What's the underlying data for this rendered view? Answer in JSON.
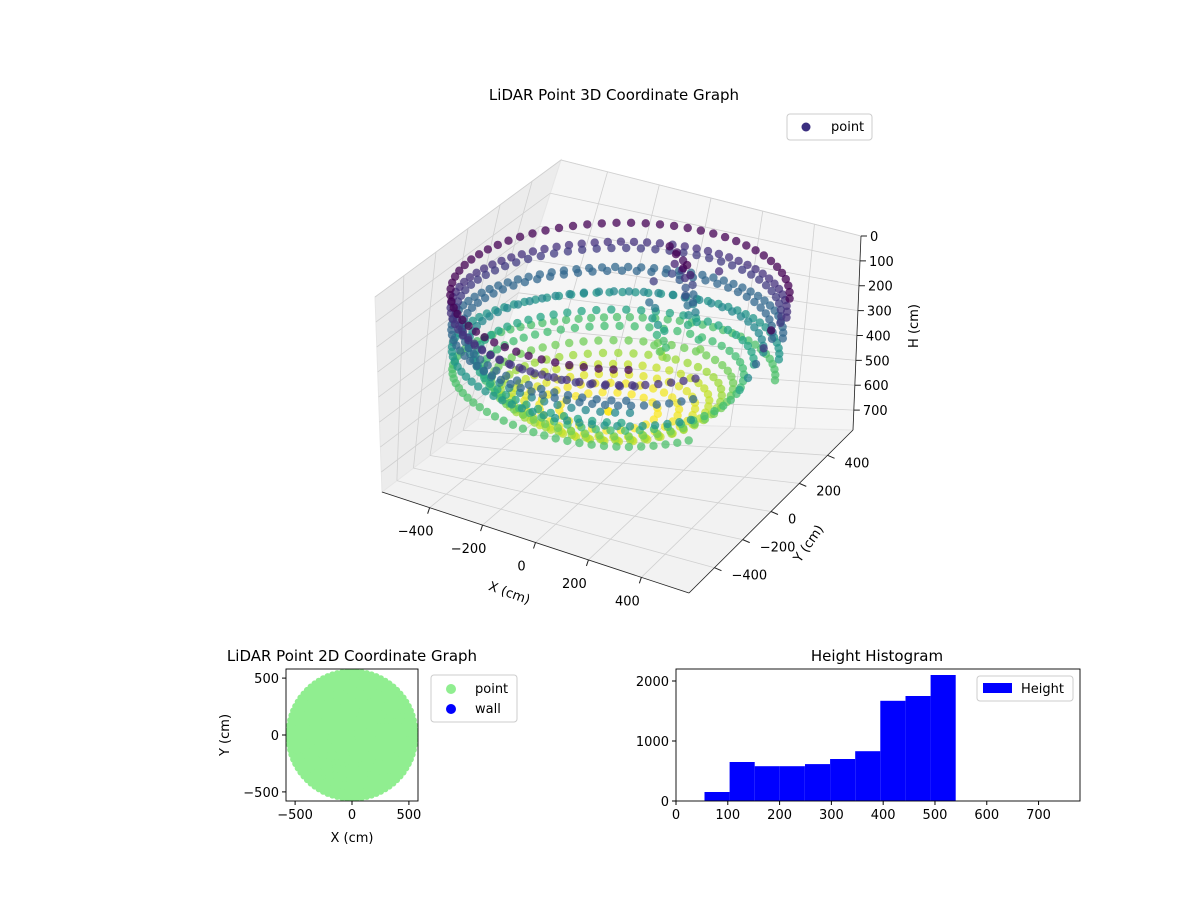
{
  "chart_data": [
    {
      "type": "scatter",
      "projection": "3d",
      "title": "LiDAR Point 3D Coordinate Graph",
      "xlabel": "X (cm)",
      "ylabel": "Y (cm)",
      "zlabel": "H (cm)",
      "xlim": [
        -580,
        580
      ],
      "ylim": [
        -580,
        580
      ],
      "zlim": [
        0,
        780
      ],
      "z_inverted": true,
      "x_ticks": [
        -400,
        -200,
        0,
        200,
        400
      ],
      "y_ticks": [
        -400,
        -200,
        0,
        200,
        400
      ],
      "z_ticks": [
        0,
        100,
        200,
        300,
        400,
        500,
        600,
        700
      ],
      "colormap": "viridis",
      "grid": true,
      "legend": {
        "placement": "upper-right",
        "entries": [
          "point"
        ],
        "colors": [
          "#3b2f80"
        ]
      },
      "series": [
        {
          "name": "point",
          "description": "bowl-shaped point cloud, rim at shallow height (dark purple), floor near 450-550 cm (yellow), radius approx 550 cm, open toward +X/-Y",
          "rim_radius": 550,
          "rim_height": 100,
          "floor_height": 520
        }
      ]
    },
    {
      "type": "scatter",
      "title": "LiDAR Point 2D Coordinate Graph",
      "xlabel": "X (cm)",
      "ylabel": "Y (cm)",
      "xlim": [
        -580,
        580
      ],
      "ylim": [
        -580,
        580
      ],
      "x_ticks": [
        -500,
        0,
        500
      ],
      "y_ticks": [
        -500,
        0,
        500
      ],
      "legend": {
        "placement": "outside-right",
        "entries": [
          "point",
          "wall"
        ],
        "colors": [
          "#90ee90",
          "#0000ff"
        ]
      },
      "series": [
        {
          "name": "point",
          "color": "#90ee90",
          "description": "dense filled disc, radius approx 560 cm"
        },
        {
          "name": "wall",
          "color": "#0000ff",
          "count": 0
        }
      ]
    },
    {
      "type": "bar",
      "subtype": "histogram",
      "title": "Height Histogram",
      "xlabel": "",
      "ylabel": "",
      "xlim": [
        0,
        780
      ],
      "ylim": [
        0,
        2200
      ],
      "x_ticks": [
        0,
        100,
        200,
        300,
        400,
        500,
        600,
        700
      ],
      "y_ticks": [
        0,
        1000,
        2000
      ],
      "legend": {
        "placement": "upper-right",
        "entries": [
          "Height"
        ],
        "colors": [
          "#0000ff"
        ]
      },
      "bin_width": 48.5,
      "bins": [
        {
          "start": 55,
          "value": 150
        },
        {
          "start": 103.5,
          "value": 650
        },
        {
          "start": 152,
          "value": 580
        },
        {
          "start": 200.5,
          "value": 580
        },
        {
          "start": 249,
          "value": 615
        },
        {
          "start": 297.5,
          "value": 700
        },
        {
          "start": 346,
          "value": 830
        },
        {
          "start": 394.5,
          "value": 1670
        },
        {
          "start": 443,
          "value": 1750
        },
        {
          "start": 491.5,
          "value": 2100
        }
      ],
      "series": [
        {
          "name": "Height",
          "color": "#0000ff"
        }
      ]
    }
  ]
}
